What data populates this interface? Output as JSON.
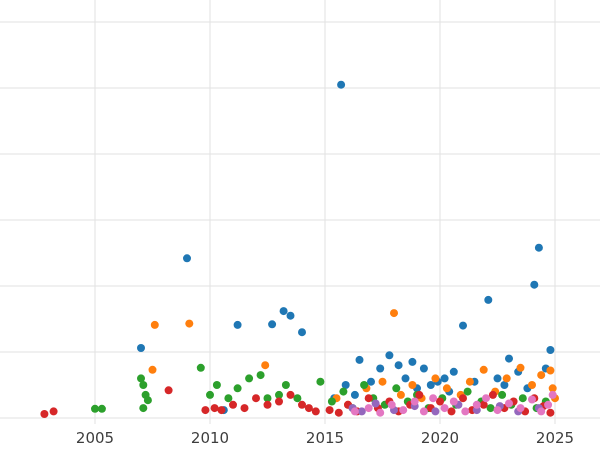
{
  "chart_data": {
    "type": "scatter",
    "title": "",
    "subtitle": "",
    "xlabel": "",
    "ylabel": "",
    "legend_position": "none",
    "grid": true,
    "x_ticks": [
      2005,
      2010,
      2015,
      2020,
      2025
    ],
    "x_tick_labels": [
      "2005",
      "2010",
      "2015",
      "2020",
      "2025"
    ],
    "y_ticks": [
      0,
      1,
      2,
      3,
      4,
      5,
      6
    ],
    "y_tick_labels_visible": false,
    "xlim": [
      2002.3,
      2026.0
    ],
    "ylim": [
      0,
      6.4
    ],
    "marker": "circle",
    "series": [
      {
        "name": "series-blue",
        "color": "#1f77b4",
        "points": [
          [
            2007.0,
            1.06
          ],
          [
            2009.0,
            2.42
          ],
          [
            2010.6,
            0.12
          ],
          [
            2011.2,
            1.41
          ],
          [
            2012.7,
            1.42
          ],
          [
            2013.2,
            1.62
          ],
          [
            2013.5,
            1.55
          ],
          [
            2014.0,
            1.3
          ],
          [
            2015.7,
            5.05
          ],
          [
            2015.4,
            0.3
          ],
          [
            2015.9,
            0.5
          ],
          [
            2016.3,
            0.35
          ],
          [
            2016.5,
            0.88
          ],
          [
            2017.0,
            0.55
          ],
          [
            2017.4,
            0.75
          ],
          [
            2017.8,
            0.95
          ],
          [
            2018.2,
            0.8
          ],
          [
            2018.5,
            0.6
          ],
          [
            2018.8,
            0.85
          ],
          [
            2019.0,
            0.45
          ],
          [
            2019.3,
            0.75
          ],
          [
            2019.6,
            0.5
          ],
          [
            2019.9,
            0.55
          ],
          [
            2020.2,
            0.6
          ],
          [
            2020.4,
            0.4
          ],
          [
            2020.6,
            0.7
          ],
          [
            2021.0,
            1.4
          ],
          [
            2021.5,
            0.55
          ],
          [
            2022.1,
            1.79
          ],
          [
            2022.5,
            0.6
          ],
          [
            2022.8,
            0.5
          ],
          [
            2023.0,
            0.9
          ],
          [
            2023.4,
            0.7
          ],
          [
            2023.8,
            0.45
          ],
          [
            2024.1,
            2.02
          ],
          [
            2024.3,
            2.58
          ],
          [
            2024.6,
            0.75
          ],
          [
            2024.8,
            1.03
          ]
        ]
      },
      {
        "name": "series-orange",
        "color": "#ff7f0e",
        "points": [
          [
            2007.5,
            0.73
          ],
          [
            2007.6,
            1.41
          ],
          [
            2009.1,
            1.43
          ],
          [
            2012.4,
            0.8
          ],
          [
            2015.5,
            0.3
          ],
          [
            2016.0,
            0.2
          ],
          [
            2016.8,
            0.45
          ],
          [
            2017.5,
            0.55
          ],
          [
            2018.0,
            1.59
          ],
          [
            2018.3,
            0.35
          ],
          [
            2018.8,
            0.5
          ],
          [
            2019.2,
            0.3
          ],
          [
            2019.8,
            0.6
          ],
          [
            2020.3,
            0.45
          ],
          [
            2020.9,
            0.35
          ],
          [
            2021.3,
            0.55
          ],
          [
            2021.9,
            0.73
          ],
          [
            2022.4,
            0.4
          ],
          [
            2022.9,
            0.6
          ],
          [
            2023.5,
            0.76
          ],
          [
            2024.0,
            0.5
          ],
          [
            2024.4,
            0.65
          ],
          [
            2024.8,
            0.72
          ],
          [
            2024.9,
            0.45
          ],
          [
            2025.0,
            0.3
          ]
        ]
      },
      {
        "name": "series-green",
        "color": "#2ca02c",
        "points": [
          [
            2005.0,
            0.14
          ],
          [
            2005.3,
            0.14
          ],
          [
            2007.0,
            0.6
          ],
          [
            2007.1,
            0.5
          ],
          [
            2007.2,
            0.35
          ],
          [
            2007.3,
            0.27
          ],
          [
            2007.1,
            0.15
          ],
          [
            2009.6,
            0.76
          ],
          [
            2010.0,
            0.35
          ],
          [
            2010.3,
            0.5
          ],
          [
            2010.8,
            0.3
          ],
          [
            2011.2,
            0.45
          ],
          [
            2011.7,
            0.6
          ],
          [
            2012.2,
            0.65
          ],
          [
            2012.5,
            0.3
          ],
          [
            2013.0,
            0.35
          ],
          [
            2013.3,
            0.5
          ],
          [
            2013.8,
            0.3
          ],
          [
            2014.8,
            0.55
          ],
          [
            2015.3,
            0.25
          ],
          [
            2015.8,
            0.4
          ],
          [
            2016.2,
            0.15
          ],
          [
            2016.7,
            0.5
          ],
          [
            2017.1,
            0.3
          ],
          [
            2017.6,
            0.2
          ],
          [
            2018.1,
            0.45
          ],
          [
            2018.6,
            0.25
          ],
          [
            2019.0,
            0.35
          ],
          [
            2019.5,
            0.15
          ],
          [
            2020.1,
            0.3
          ],
          [
            2020.7,
            0.2
          ],
          [
            2021.2,
            0.4
          ],
          [
            2021.8,
            0.25
          ],
          [
            2022.2,
            0.15
          ],
          [
            2022.7,
            0.35
          ],
          [
            2023.1,
            0.2
          ],
          [
            2023.6,
            0.3
          ],
          [
            2024.2,
            0.15
          ],
          [
            2024.6,
            0.25
          ]
        ]
      },
      {
        "name": "series-red",
        "color": "#d62728",
        "points": [
          [
            2002.8,
            0.06
          ],
          [
            2003.2,
            0.1
          ],
          [
            2008.2,
            0.42
          ],
          [
            2009.8,
            0.12
          ],
          [
            2010.2,
            0.15
          ],
          [
            2010.5,
            0.12
          ],
          [
            2011.0,
            0.2
          ],
          [
            2011.5,
            0.15
          ],
          [
            2012.0,
            0.3
          ],
          [
            2012.5,
            0.2
          ],
          [
            2013.0,
            0.25
          ],
          [
            2013.5,
            0.35
          ],
          [
            2014.0,
            0.2
          ],
          [
            2014.3,
            0.15
          ],
          [
            2014.6,
            0.1
          ],
          [
            2015.2,
            0.12
          ],
          [
            2015.6,
            0.08
          ],
          [
            2016.0,
            0.2
          ],
          [
            2016.4,
            0.1
          ],
          [
            2016.9,
            0.3
          ],
          [
            2017.3,
            0.15
          ],
          [
            2017.8,
            0.25
          ],
          [
            2018.2,
            0.1
          ],
          [
            2018.7,
            0.2
          ],
          [
            2019.1,
            0.35
          ],
          [
            2019.6,
            0.15
          ],
          [
            2020.0,
            0.25
          ],
          [
            2020.5,
            0.1
          ],
          [
            2021.0,
            0.3
          ],
          [
            2021.4,
            0.12
          ],
          [
            2021.9,
            0.2
          ],
          [
            2022.3,
            0.35
          ],
          [
            2022.8,
            0.15
          ],
          [
            2023.2,
            0.25
          ],
          [
            2023.7,
            0.1
          ],
          [
            2024.1,
            0.3
          ],
          [
            2024.5,
            0.18
          ],
          [
            2024.8,
            0.08
          ]
        ]
      },
      {
        "name": "series-purple",
        "color": "#9467bd",
        "points": [
          [
            2016.2,
            0.15
          ],
          [
            2016.6,
            0.1
          ],
          [
            2017.2,
            0.22
          ],
          [
            2018.0,
            0.12
          ],
          [
            2018.9,
            0.18
          ],
          [
            2019.8,
            0.1
          ],
          [
            2020.8,
            0.2
          ],
          [
            2021.6,
            0.12
          ],
          [
            2022.6,
            0.18
          ],
          [
            2023.4,
            0.1
          ],
          [
            2024.3,
            0.15
          ]
        ]
      },
      {
        "name": "series-pink",
        "color": "#e377c2",
        "points": [
          [
            2016.3,
            0.1
          ],
          [
            2016.9,
            0.15
          ],
          [
            2017.4,
            0.08
          ],
          [
            2017.9,
            0.2
          ],
          [
            2018.4,
            0.12
          ],
          [
            2018.9,
            0.25
          ],
          [
            2019.3,
            0.1
          ],
          [
            2019.7,
            0.3
          ],
          [
            2020.2,
            0.15
          ],
          [
            2020.6,
            0.25
          ],
          [
            2021.1,
            0.1
          ],
          [
            2021.6,
            0.2
          ],
          [
            2022.0,
            0.3
          ],
          [
            2022.5,
            0.12
          ],
          [
            2023.0,
            0.22
          ],
          [
            2023.5,
            0.15
          ],
          [
            2024.0,
            0.28
          ],
          [
            2024.4,
            0.1
          ],
          [
            2024.7,
            0.2
          ],
          [
            2024.9,
            0.35
          ]
        ]
      }
    ]
  },
  "colors": {
    "background": "#ffffff",
    "gridline": "#e2e2e2",
    "tick_label": "#3d3d3d"
  }
}
